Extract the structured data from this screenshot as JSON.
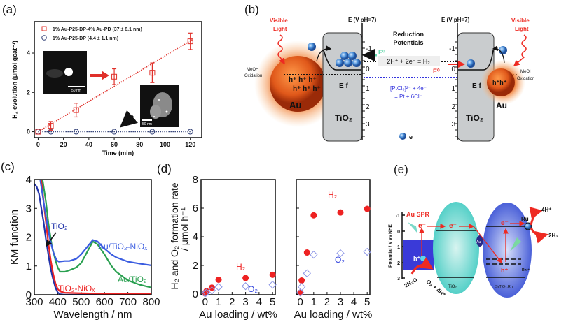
{
  "panels": {
    "a": "(a)",
    "b": "(b)",
    "c": "(c)",
    "d": "(d)",
    "e": "(e)"
  },
  "chart_data": [
    {
      "panel": "(a)",
      "type": "scatter",
      "xlabel": "Time (min)",
      "ylabel": "H₂ evolution (μmol gcat⁻¹)",
      "xlim": [
        -3,
        129
      ],
      "ylim": [
        -0.3,
        5.6
      ],
      "xticks": [
        0,
        20,
        40,
        60,
        80,
        100,
        120
      ],
      "yticks": [
        0,
        2,
        4
      ],
      "legend_position": "top-left",
      "series": [
        {
          "name": "1% Au-P25-DP-4% Au-PD (37 ± 8.1 nm)",
          "color": "#e0302a",
          "marker": "square",
          "fit": "dotted-line",
          "x": [
            0,
            10,
            30,
            60,
            90,
            120
          ],
          "y": [
            0,
            0.3,
            1.1,
            2.8,
            3.0,
            4.6
          ],
          "yerr": [
            0,
            0.22,
            0.35,
            0.4,
            0.5,
            0.42
          ]
        },
        {
          "name": "1% Au-P25-DP (4.4 ± 1.1 nm)",
          "color": "#2f3e75",
          "marker": "circle",
          "fit": "dotted-line",
          "x": [
            0,
            10,
            30,
            60,
            90,
            120
          ],
          "y": [
            0,
            0,
            0,
            0,
            0,
            0
          ]
        }
      ],
      "insets": [
        {
          "scale_bar": "50 nm"
        },
        {
          "scale_bar": "50 nm"
        }
      ]
    },
    {
      "panel": "(c)",
      "type": "line",
      "xlabel": "Wavelength / nm",
      "ylabel": "KM function",
      "xlim": [
        300,
        800
      ],
      "ylim": [
        0,
        4
      ],
      "xticks": [
        300,
        400,
        500,
        600,
        700,
        800
      ],
      "yticks": [
        0,
        1,
        2,
        3,
        4
      ],
      "series": [
        {
          "name": "TiO₂",
          "color": "#2233aa",
          "x": [
            300,
            310,
            320,
            330,
            340,
            350,
            360,
            370,
            380,
            390,
            400,
            410,
            430,
            800
          ],
          "y": [
            3.85,
            3.75,
            3.5,
            3.0,
            2.5,
            1.9,
            1.4,
            0.9,
            0.55,
            0.25,
            0.08,
            0.02,
            0,
            0
          ]
        },
        {
          "name": "TiO₂-NiOₓ",
          "color": "#ee2222",
          "x": [
            330,
            340,
            350,
            360,
            370,
            380,
            390,
            400,
            410,
            430,
            500,
            600,
            800
          ],
          "y": [
            4.0,
            3.2,
            2.5,
            1.8,
            1.2,
            0.75,
            0.4,
            0.2,
            0.12,
            0.07,
            0.05,
            0.04,
            0.03
          ]
        },
        {
          "name": "Au/TiO₂",
          "color": "#2aa050",
          "x": [
            335,
            350,
            360,
            375,
            390,
            400,
            410,
            430,
            450,
            480,
            500,
            520,
            550,
            570,
            600,
            630,
            650,
            700,
            750,
            800
          ],
          "y": [
            4.0,
            3.2,
            2.5,
            1.7,
            1.2,
            0.95,
            0.8,
            0.8,
            0.85,
            0.95,
            1.1,
            1.4,
            1.85,
            1.75,
            1.4,
            1.0,
            0.8,
            0.5,
            0.35,
            0.25
          ]
        },
        {
          "name": "Au/TiO₂-NiOₓ",
          "color": "#3a5ce0",
          "x": [
            325,
            340,
            350,
            365,
            380,
            395,
            405,
            430,
            450,
            480,
            500,
            520,
            550,
            570,
            600,
            630,
            650,
            700,
            750,
            800
          ],
          "y": [
            4.0,
            3.2,
            2.7,
            2.0,
            1.5,
            1.2,
            1.15,
            1.17,
            1.17,
            1.25,
            1.4,
            1.6,
            1.9,
            1.85,
            1.6,
            1.4,
            1.3,
            1.15,
            1.08,
            1.02
          ]
        }
      ]
    },
    {
      "panel": "(d)",
      "type": "scatter",
      "xlabel": "Au loading / wt%",
      "ylabel": "H₂ and O₂ formation rate",
      "ylabel2": "/ μmol h⁻¹",
      "xlim": [
        -0.3,
        5.2
      ],
      "ylim": [
        0,
        8
      ],
      "xticks": [
        0,
        1,
        2,
        3,
        4,
        5
      ],
      "yticks": [
        0,
        2,
        4,
        6,
        8
      ],
      "subplots": [
        {
          "series": [
            {
              "name": "H₂",
              "color": "#ee2222",
              "marker": "filled-circle",
              "x": [
                0,
                0.1,
                0.5,
                1,
                3,
                5
              ],
              "y": [
                0.05,
                0.2,
                0.45,
                1.0,
                1.12,
                1.35
              ]
            },
            {
              "name": "O₂",
              "color": "#8c96e6",
              "marker": "open-diamond",
              "x": [
                0,
                0.1,
                0.5,
                1,
                3,
                5
              ],
              "y": [
                0.05,
                0.1,
                0.25,
                0.5,
                0.55,
                0.65
              ]
            }
          ]
        },
        {
          "series": [
            {
              "name": "H₂",
              "color": "#ee2222",
              "marker": "filled-circle",
              "x": [
                0,
                0.1,
                0.5,
                1,
                3,
                5
              ],
              "y": [
                0.1,
                0.95,
                2.9,
                5.5,
                5.7,
                5.95
              ]
            },
            {
              "name": "O₂",
              "color": "#8c96e6",
              "marker": "open-diamond",
              "x": [
                0,
                0.1,
                0.5,
                1,
                3,
                5
              ],
              "y": [
                0.1,
                0.5,
                1.45,
                2.75,
                2.85,
                2.95
              ]
            }
          ]
        }
      ]
    }
  ],
  "diagram_b": {
    "axis_title": "E (V  pH=7)",
    "axis_ticks": [
      "-1",
      "0",
      "1",
      "2",
      "3"
    ],
    "visible_light_1": "Visible",
    "visible_light_2": "Light",
    "meoh_1": "MeOH",
    "meoh_2": "Oxidation",
    "holes_left_1": "h⁺ h⁺ h⁺",
    "holes_left_2": "h⁺ h⁺ h⁺",
    "holes_right": "h⁺h⁺",
    "au": "Au",
    "tio2": "TiO₂",
    "ef": "E f",
    "e0": "E⁰",
    "reduction_1": "Reduction",
    "reduction_2": "Potentials",
    "h2_reaction": "2H⁺ + 2e⁻ = H₂",
    "pt_reaction_1": "[PtCl₆]²⁻ + 4e⁻",
    "pt_reaction_2": "= Pt + 6Cl⁻",
    "electron_legend": "e⁻",
    "colors": {
      "au": "#e8641e",
      "tio2": "#c9ccce",
      "electron": "#4a8fd8",
      "red": "#ee2a22",
      "green": "#5fd6a8",
      "blue_line": "#3333dd"
    }
  },
  "diagram_e": {
    "axis_title": "Potential / V vs NHE",
    "axis_ticks": [
      "-1",
      "0",
      "1",
      "2",
      "3"
    ],
    "au_spr": "Au SPR",
    "electron": "e⁻",
    "hole": "h⁺",
    "water": "2H₂O",
    "oxygen": "O₂ + 4H⁺",
    "tio2": "TiO₂",
    "srtio3": "SrTiO₃:Rh",
    "au": "Au",
    "ru": "Ru",
    "protons": "4H⁺",
    "hydrogen": "2H₂",
    "rh": "Rh³⁺"
  }
}
